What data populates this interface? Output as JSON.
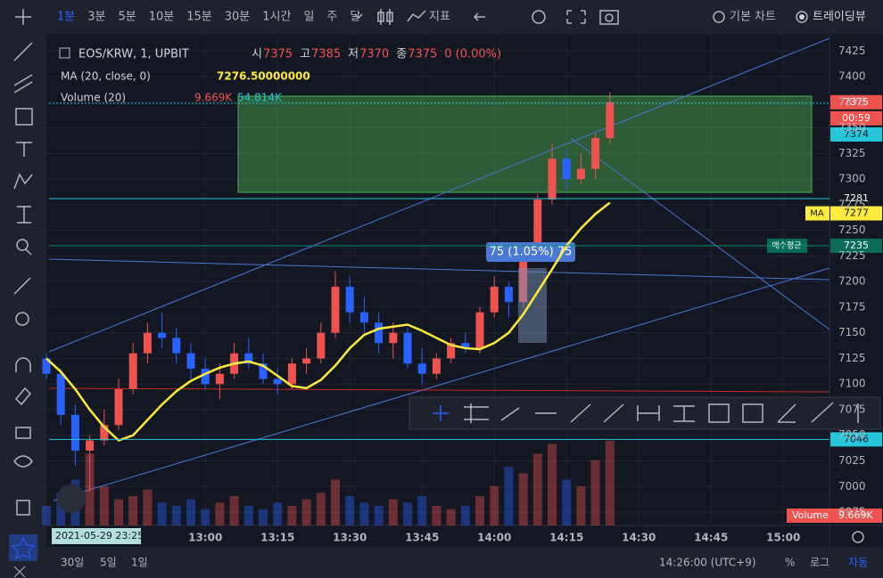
{
  "toolbar": {
    "intervals": [
      "1분",
      "3분",
      "5분",
      "10분",
      "15분",
      "30분",
      "1시간",
      "일",
      "주",
      "달"
    ],
    "indicator": "지표",
    "chart_modes": [
      "기본 차트",
      "트레이딩뷰"
    ]
  },
  "legend": {
    "symbol": "EOS/KRW, 1, UPBIT",
    "o_label": "시",
    "o": 7375,
    "h_label": "고",
    "h": 7385,
    "l_label": "저",
    "l": 7370,
    "c_label": "종",
    "c": 7375,
    "change": "0 (0.00%)",
    "ma_name": "MA (20, close, 0)",
    "ma_value": "7276.50000000",
    "vol_name": "Volume (20)",
    "vol_value": "9.669K",
    "vol_ma": "54.814K"
  },
  "chart_data": {
    "type": "candlestick",
    "categories": [
      null,
      null,
      null,
      null,
      null,
      null,
      null,
      null,
      null,
      null,
      null,
      "13:00",
      null,
      null,
      null,
      null,
      "13:15",
      null,
      null,
      null,
      null,
      "13:30",
      null,
      null,
      null,
      null,
      "13:45",
      null,
      null,
      null,
      null,
      "14:00",
      null,
      null,
      null,
      null,
      "14:15",
      null,
      null,
      null,
      null,
      "14:30",
      null,
      null,
      null,
      null,
      "14:45",
      null,
      null,
      null,
      null,
      "15:00",
      null,
      null
    ],
    "open": [
      7125,
      7110,
      7070,
      7035,
      7045,
      7060,
      7095,
      7130,
      7150,
      7145,
      7130,
      7115,
      7100,
      7110,
      7130,
      7120,
      7105,
      7100,
      7120,
      7125,
      7150,
      7195,
      7170,
      7160,
      7140,
      7150,
      7120,
      7110,
      7125,
      7140,
      7135,
      7170,
      7195,
      7180,
      7230,
      7280,
      7320,
      7300,
      7310,
      7340,
      null,
      null,
      null,
      null,
      null,
      null,
      null,
      null,
      null,
      null,
      null,
      null,
      null,
      null
    ],
    "high": [
      7130,
      7115,
      7080,
      7050,
      7075,
      7105,
      7140,
      7160,
      7170,
      7155,
      7140,
      7125,
      7120,
      7140,
      7145,
      7130,
      7115,
      7125,
      7135,
      7160,
      7210,
      7205,
      7185,
      7170,
      7160,
      7155,
      7135,
      7130,
      7145,
      7150,
      7175,
      7205,
      7200,
      7235,
      7285,
      7335,
      7330,
      7325,
      7345,
      7385,
      null,
      null,
      null,
      null,
      null,
      null,
      null,
      null,
      null,
      null,
      null,
      null,
      null,
      null
    ],
    "low": [
      7105,
      7060,
      7020,
      6995,
      7040,
      7055,
      7090,
      7120,
      7135,
      7120,
      7105,
      7095,
      7085,
      7105,
      7115,
      7100,
      7090,
      7095,
      7110,
      7120,
      7145,
      7160,
      7150,
      7130,
      7125,
      7115,
      7100,
      7105,
      7120,
      7130,
      7130,
      7165,
      7165,
      7175,
      7225,
      7275,
      7290,
      7295,
      7300,
      7335,
      null,
      null,
      null,
      null,
      null,
      null,
      null,
      null,
      null,
      null,
      null,
      null,
      null,
      null
    ],
    "close": [
      7110,
      7070,
      7035,
      7045,
      7060,
      7095,
      7130,
      7150,
      7145,
      7130,
      7115,
      7100,
      7110,
      7130,
      7120,
      7105,
      7100,
      7120,
      7125,
      7150,
      7195,
      7170,
      7160,
      7140,
      7150,
      7120,
      7110,
      7125,
      7140,
      7135,
      7170,
      7195,
      7180,
      7230,
      7280,
      7320,
      7300,
      7310,
      7340,
      7375,
      null,
      null,
      null,
      null,
      null,
      null,
      null,
      null,
      null,
      null,
      null,
      null,
      null,
      null
    ],
    "ma": {
      "name": "MA",
      "color": "#ffeb3b",
      "values": [
        7125,
        7112,
        7095,
        7075,
        7058,
        7045,
        7050,
        7065,
        7080,
        7093,
        7103,
        7110,
        7116,
        7120,
        7122,
        7118,
        7108,
        7098,
        7096,
        7104,
        7118,
        7135,
        7148,
        7154,
        7156,
        7158,
        7152,
        7145,
        7138,
        7135,
        7134,
        7140,
        7150,
        7168,
        7190,
        7212,
        7235,
        7252,
        7266,
        7277,
        null,
        null,
        null,
        null,
        null,
        null,
        null,
        null,
        null,
        null,
        null,
        null,
        null,
        null
      ]
    },
    "volume": [
      6,
      10,
      14,
      22,
      12,
      8,
      9,
      11,
      7,
      6,
      8,
      5,
      7,
      9,
      6,
      5,
      7,
      6,
      8,
      10,
      14,
      9,
      7,
      6,
      8,
      7,
      9,
      6,
      5,
      6,
      9,
      12,
      18,
      16,
      22,
      25,
      14,
      12,
      20,
      26,
      null,
      null,
      null,
      null,
      null,
      null,
      null,
      null,
      null,
      null,
      null,
      null,
      null,
      null
    ],
    "volume_ylim": [
      0,
      30
    ],
    "up_color": "#ef5350",
    "down_color": "#2962ff",
    "ylim": [
      6962,
      7440
    ],
    "yticks": [
      7425,
      7400,
      7375,
      7350,
      7325,
      7300,
      7275,
      7250,
      7225,
      7200,
      7175,
      7150,
      7125,
      7100,
      7075,
      7050,
      7025,
      7000,
      6975
    ],
    "grid": true
  },
  "badges": {
    "countdown": "00:59",
    "ask": 7374,
    "box_low": 7281,
    "ma_label": "MA",
    "ma": 7277,
    "avg_label": "매수평균",
    "avg": 7235,
    "line_low": 7046,
    "vol_label": "Volume",
    "vol": "9.669K"
  },
  "measure": "75 (1.05%) 75",
  "crosshair_time": "2021-05-29  23:25",
  "bottom": {
    "ranges": [
      "30일",
      "5일",
      "1일"
    ],
    "clock": "14:26:00 (UTC+9)",
    "percent": "%",
    "log": "로그",
    "auto": "자동"
  }
}
